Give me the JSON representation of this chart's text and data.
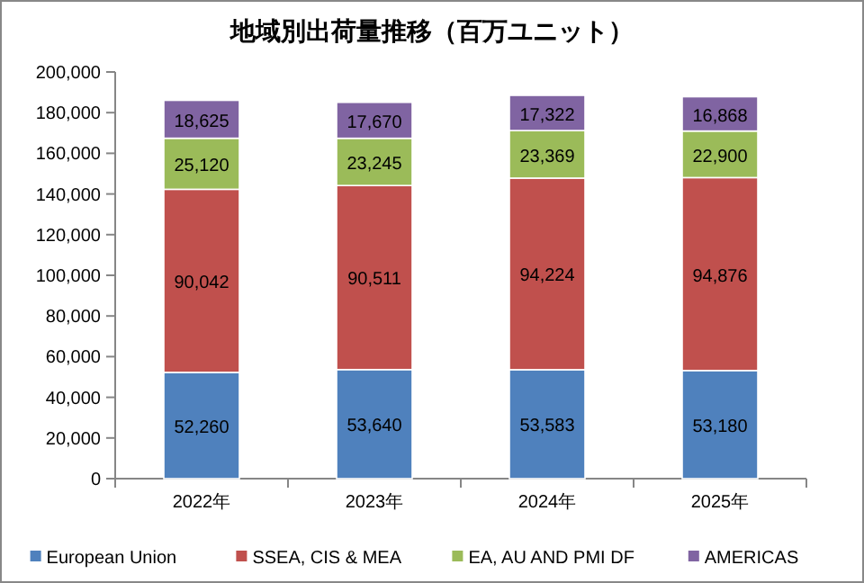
{
  "chart_data": {
    "type": "bar",
    "stacked": true,
    "title": "地域別出荷量推移（百万ユニット）",
    "categories": [
      "2022年",
      "2023年",
      "2024年",
      "2025年"
    ],
    "series": [
      {
        "name": "European Union",
        "color": "#4f81bd",
        "values": [
          52260,
          53640,
          53583,
          53180
        ],
        "value_labels": [
          "52,260",
          "53,640",
          "53,583",
          "53,180"
        ]
      },
      {
        "name": "SSEA, CIS & MEA",
        "color": "#c0504d",
        "values": [
          90042,
          90511,
          94224,
          94876
        ],
        "value_labels": [
          "90,042",
          "90,511",
          "94,224",
          "94,876"
        ]
      },
      {
        "name": "EA, AU AND PMI DF",
        "color": "#9bbb59",
        "values": [
          25120,
          23245,
          23369,
          22900
        ],
        "value_labels": [
          "25,120",
          "23,245",
          "23,369",
          "22,900"
        ]
      },
      {
        "name": "AMERICAS",
        "color": "#8064a2",
        "values": [
          18625,
          17670,
          17322,
          16868
        ],
        "value_labels": [
          "18,625",
          "17,670",
          "17,322",
          "16,868"
        ]
      }
    ],
    "ylim": [
      0,
      200000
    ],
    "yticks": [
      {
        "value": 0,
        "label": "0"
      },
      {
        "value": 20000,
        "label": "20,000"
      },
      {
        "value": 40000,
        "label": "40,000"
      },
      {
        "value": 60000,
        "label": "60,000"
      },
      {
        "value": 80000,
        "label": "80,000"
      },
      {
        "value": 100000,
        "label": "100,000"
      },
      {
        "value": 120000,
        "label": "120,000"
      },
      {
        "value": 140000,
        "label": "140,000"
      },
      {
        "value": 160000,
        "label": "160,000"
      },
      {
        "value": 180000,
        "label": "180,000"
      },
      {
        "value": 200000,
        "label": "200,000"
      }
    ],
    "grid": false,
    "legend": "bottom"
  }
}
